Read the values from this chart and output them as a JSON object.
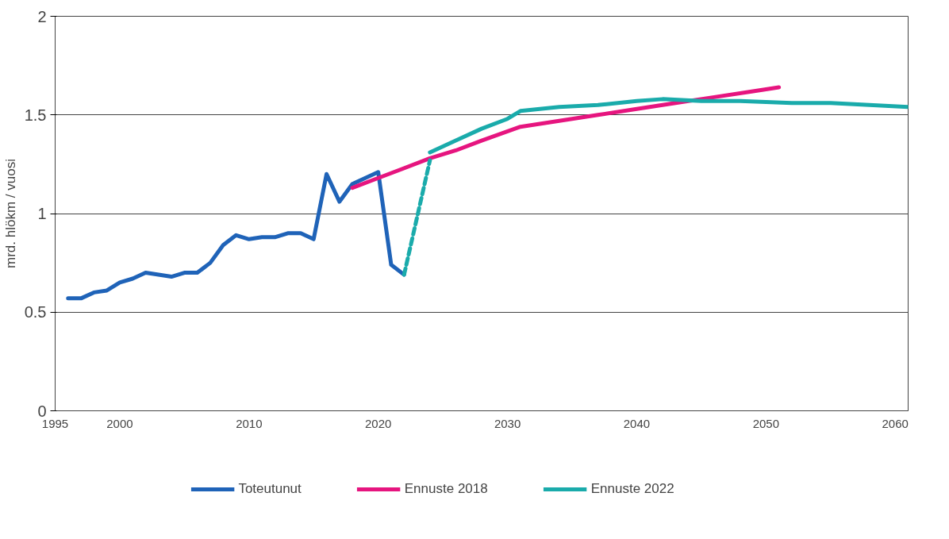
{
  "chart_data": {
    "type": "line",
    "ylabel": "mrd. hlökm / vuosi",
    "xlim": [
      1995,
      2061
    ],
    "xticks": [
      1995,
      2000,
      2010,
      2020,
      2030,
      2040,
      2050,
      2060
    ],
    "ylim": [
      0,
      2
    ],
    "yticks": [
      0,
      {
        "value": 0.5,
        "label": "0.5"
      },
      1,
      {
        "value": 1.5,
        "label": "1.5"
      },
      2
    ],
    "grid": "y",
    "legend": "bottom",
    "marker": "none",
    "line_style": "solid",
    "series": [
      {
        "name": "Toteutunut",
        "color": "#1f63b8",
        "x": [
          1996,
          1997,
          1998,
          1999,
          2000,
          2001,
          2002,
          2003,
          2004,
          2005,
          2006,
          2007,
          2008,
          2009,
          2010,
          2011,
          2012,
          2013,
          2014,
          2015,
          2016,
          2017,
          2018,
          2019,
          2020,
          2021,
          2022
        ],
        "values": [
          0.57,
          0.57,
          0.6,
          0.61,
          0.65,
          0.67,
          0.7,
          0.69,
          0.68,
          0.7,
          0.7,
          0.75,
          0.84,
          0.89,
          0.87,
          0.88,
          0.88,
          0.9,
          0.9,
          0.87,
          1.2,
          1.06,
          1.15,
          1.18,
          1.21,
          0.74,
          0.69
        ]
      },
      {
        "name": "Ennuste 2018",
        "color": "#e6157f",
        "x": [
          2018,
          2020,
          2024,
          2026,
          2028,
          2031,
          2034,
          2037,
          2040,
          2043,
          2046,
          2049,
          2051
        ],
        "values": [
          1.13,
          1.18,
          1.28,
          1.32,
          1.37,
          1.44,
          1.47,
          1.5,
          1.53,
          1.56,
          1.59,
          1.62,
          1.64
        ]
      },
      {
        "name": "Ennuste 2022",
        "color": "#1aabab",
        "x": [
          2024,
          2026,
          2028,
          2030,
          2031,
          2034,
          2037,
          2040,
          2042,
          2045,
          2048,
          2052,
          2055,
          2058,
          2061
        ],
        "values": [
          1.31,
          1.37,
          1.43,
          1.48,
          1.52,
          1.54,
          1.55,
          1.57,
          1.58,
          1.57,
          1.57,
          1.56,
          1.56,
          1.55,
          1.54
        ]
      },
      {
        "color": "#1aabab",
        "line_style": "dashed",
        "x": [
          2022,
          2024
        ],
        "values": [
          0.69,
          1.27
        ]
      }
    ]
  }
}
